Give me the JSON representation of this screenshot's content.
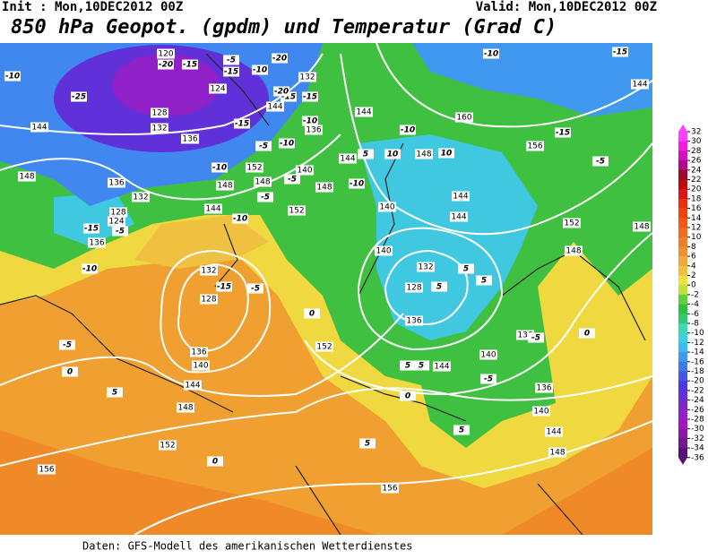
{
  "header": {
    "init": "Init : Mon,10DEC2012 00Z",
    "valid": "Valid: Mon,10DEC2012 00Z",
    "title": "850 hPa Geopot. (gpdm) und Temperatur (Grad C)"
  },
  "footer": "Daten: GFS-Modell des amerikanischen Wetterdienstes",
  "colorbar": {
    "ticks": [
      32,
      30,
      28,
      26,
      24,
      22,
      20,
      18,
      16,
      14,
      12,
      10,
      8,
      6,
      4,
      2,
      0,
      -2,
      -4,
      -6,
      -8,
      -10,
      -12,
      -14,
      -16,
      -18,
      -20,
      -22,
      -24,
      -26,
      -28,
      -30,
      -32,
      -34,
      -36
    ],
    "colors": [
      "#ff40ff",
      "#f020e0",
      "#d010c0",
      "#b00a8a",
      "#a00a2a",
      "#c00a0a",
      "#d81818",
      "#e83010",
      "#f04410",
      "#f05818",
      "#f06a20",
      "#f07e28",
      "#f09030",
      "#f0a838",
      "#f0c040",
      "#f0e040",
      "#c0e040",
      "#60d040",
      "#30c040",
      "#30c870",
      "#40d8b0",
      "#40d0e0",
      "#40b8f0",
      "#4098f0",
      "#4078f0",
      "#4058e8",
      "#4a38e0",
      "#6030d8",
      "#7828d0",
      "#9020c8",
      "#a018c0",
      "#8818a8",
      "#701890",
      "#581078"
    ]
  },
  "geopotential_labels": [
    120,
    124,
    128,
    132,
    136,
    144,
    148,
    132,
    136,
    128,
    124,
    144,
    136,
    132,
    128,
    136,
    140,
    144,
    148,
    152,
    156,
    152,
    152,
    148,
    148,
    144,
    140,
    136,
    132,
    148,
    152,
    144,
    144,
    140,
    140,
    132,
    128,
    136,
    144,
    140,
    136,
    136,
    140,
    144,
    148,
    148,
    152,
    144,
    144,
    148,
    156,
    160,
    144,
    148,
    156
  ],
  "temperature_labels": [
    -10,
    -25,
    -20,
    -15,
    -5,
    -15,
    -10,
    -20,
    -15,
    -20,
    -15,
    -10,
    -15,
    -10,
    -5,
    -10,
    -5,
    -5,
    -10,
    -10,
    -5,
    -15,
    -10,
    -15,
    -5,
    0,
    -5,
    0,
    5,
    5,
    0,
    5,
    5,
    5,
    5,
    0,
    5,
    5,
    5,
    10,
    10,
    -10,
    -15,
    -5,
    0,
    -5,
    -5,
    -10,
    -15
  ]
}
